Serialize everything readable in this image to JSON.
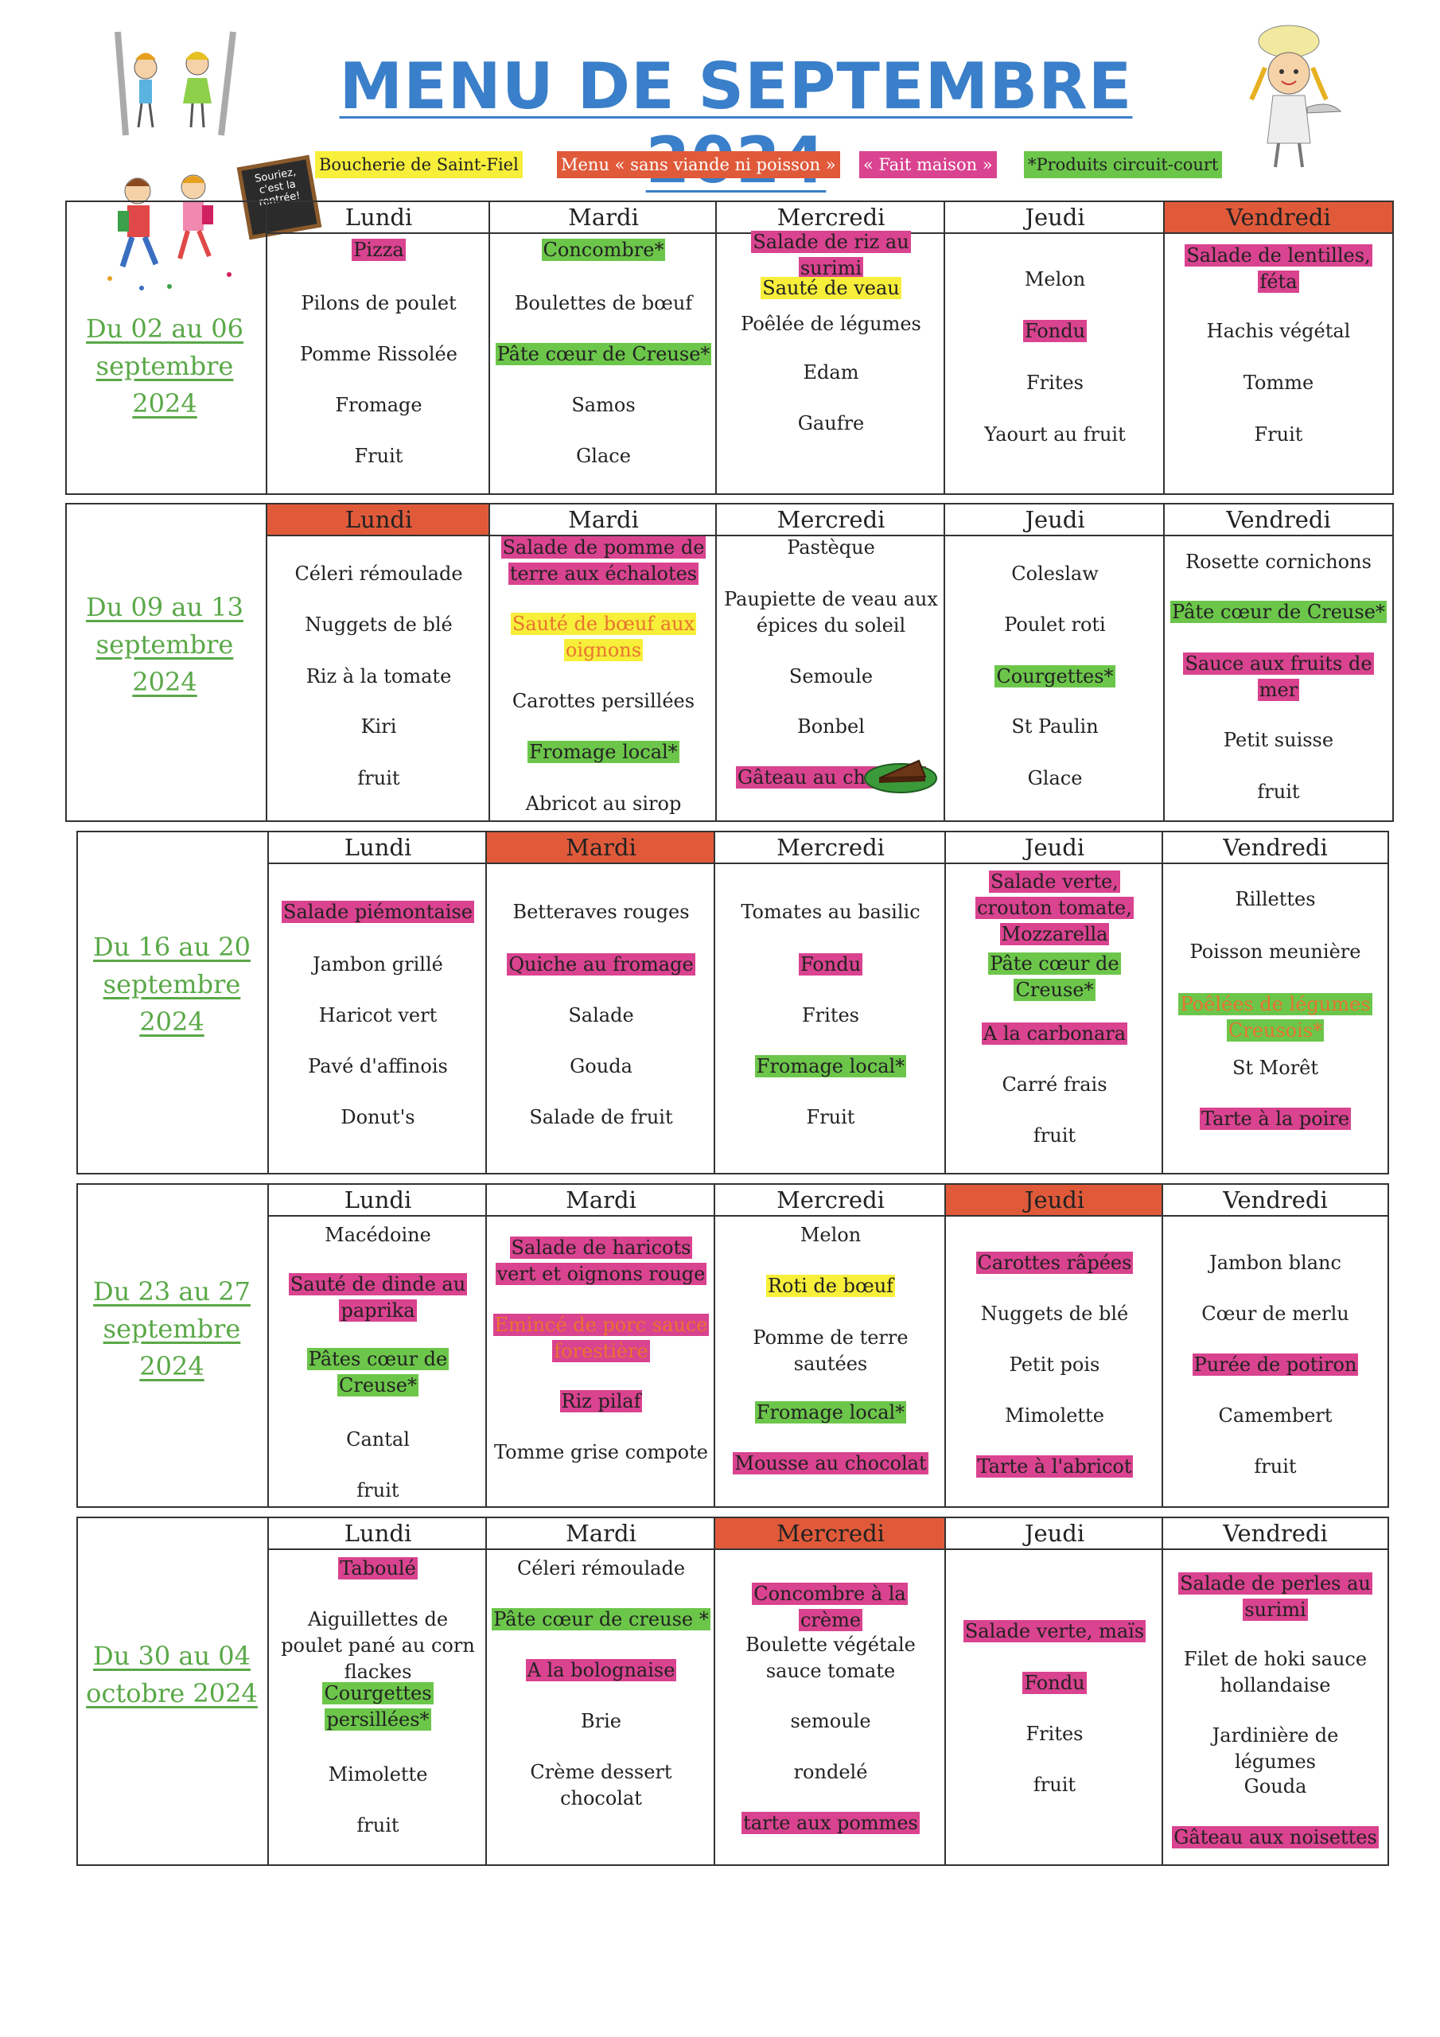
{
  "title": "MENU DE SEPTEMBRE 2024",
  "legend": {
    "boucherie": "Boucherie de Saint-Fiel",
    "sans_viande": "Menu « sans viande ni poisson »",
    "fait_maison": "« Fait maison »",
    "circuit_court": "*Produits circuit-court"
  },
  "sign_text": "Souriez, c'est la rentrée!",
  "colors": {
    "title": "#3a7fc9",
    "week_label": "#5aa848",
    "sans_viande": "#e05a3a",
    "fait_maison": "#d9438f",
    "circuit_court": "#6cc64a",
    "boucherie": "#f7ef3a"
  },
  "weeks": [
    {
      "label": [
        "Du 02 au 06",
        "septembre",
        "2024"
      ],
      "days": [
        {
          "name": "Lundi",
          "items": [
            {
              "t": "Pizza",
              "c": "pink"
            },
            {
              "t": "Pilons de poulet"
            },
            {
              "t": "Pomme Rissolée"
            },
            {
              "t": "Fromage"
            },
            {
              "t": "Fruit"
            }
          ]
        },
        {
          "name": "Mardi",
          "items": [
            {
              "t": "Concombre*",
              "c": "green"
            },
            {
              "t": "Boulettes de bœuf"
            },
            {
              "t": "Pâte cœur de Creuse*",
              "c": "green"
            },
            {
              "t": "Samos"
            },
            {
              "t": "Glace"
            }
          ]
        },
        {
          "name": "Mercredi",
          "items": [
            {
              "t": "Salade de riz au surimi",
              "c": "pink"
            },
            {
              "t": "Sauté de veau",
              "c": "yellow"
            },
            {
              "t": "Poêlée de légumes"
            },
            {
              "t": "Edam"
            },
            {
              "t": "Gaufre"
            }
          ]
        },
        {
          "name": "Jeudi",
          "items": [
            {
              "t": "Melon"
            },
            {
              "t": "Fondu",
              "c": "pink"
            },
            {
              "t": "Frites"
            },
            {
              "t": "Yaourt au fruit"
            }
          ]
        },
        {
          "name": "Vendredi",
          "red": true,
          "items": [
            {
              "t": "Salade de lentilles, féta",
              "c": "pink"
            },
            {
              "t": "Hachis végétal"
            },
            {
              "t": "Tomme"
            },
            {
              "t": "Fruit"
            }
          ]
        }
      ]
    },
    {
      "label": [
        "Du 09 au 13",
        "septembre",
        "2024"
      ],
      "days": [
        {
          "name": "Lundi",
          "red": true,
          "items": [
            {
              "t": "Céleri rémoulade"
            },
            {
              "t": "Nuggets de blé"
            },
            {
              "t": "Riz à la tomate"
            },
            {
              "t": "Kiri"
            },
            {
              "t": "fruit"
            }
          ]
        },
        {
          "name": "Mardi",
          "items": [
            {
              "t": "Salade de pomme de terre aux échalotes",
              "c": "pink"
            },
            {
              "t": "Sauté de bœuf aux oignons",
              "c": "orange-text yellow"
            },
            {
              "t": "Carottes persillées"
            },
            {
              "t": "Fromage local*",
              "c": "green"
            },
            {
              "t": "Abricot au sirop"
            }
          ]
        },
        {
          "name": "Mercredi",
          "items": [
            {
              "t": "Pastèque"
            },
            {
              "t": "Paupiette de veau aux épices du soleil"
            },
            {
              "t": "Semoule"
            },
            {
              "t": "Bonbel"
            },
            {
              "t": "Gâteau au chocolat",
              "c": "pink"
            }
          ]
        },
        {
          "name": "Jeudi",
          "items": [
            {
              "t": "Coleslaw"
            },
            {
              "t": "Poulet roti"
            },
            {
              "t": "Courgettes*",
              "c": "green"
            },
            {
              "t": "St Paulin"
            },
            {
              "t": "Glace"
            }
          ]
        },
        {
          "name": "Vendredi",
          "items": [
            {
              "t": "Rosette cornichons"
            },
            {
              "t": "Pâte cœur de Creuse*",
              "c": "green"
            },
            {
              "t": "Sauce aux fruits de mer",
              "c": "pink"
            },
            {
              "t": "Petit suisse"
            },
            {
              "t": "fruit"
            }
          ]
        }
      ]
    },
    {
      "label": [
        "Du 16  au 20",
        "septembre",
        "2024"
      ],
      "days": [
        {
          "name": "Lundi",
          "items": [
            {
              "t": "Salade piémontaise",
              "c": "pink"
            },
            {
              "t": "Jambon grillé"
            },
            {
              "t": "Haricot vert"
            },
            {
              "t": "Pavé d'affinois"
            },
            {
              "t": "Donut's"
            }
          ]
        },
        {
          "name": "Mardi",
          "red": true,
          "items": [
            {
              "t": "Betteraves rouges"
            },
            {
              "t": "Quiche au fromage",
              "c": "pink"
            },
            {
              "t": "Salade"
            },
            {
              "t": "Gouda"
            },
            {
              "t": "Salade de fruit"
            }
          ]
        },
        {
          "name": "Mercredi",
          "items": [
            {
              "t": "Tomates au basilic"
            },
            {
              "t": "Fondu",
              "c": "pink"
            },
            {
              "t": "Frites"
            },
            {
              "t": "Fromage local*",
              "c": "green"
            },
            {
              "t": "Fruit"
            }
          ]
        },
        {
          "name": "Jeudi",
          "items": [
            {
              "t": "Salade verte, crouton tomate, Mozzarella",
              "c": "pink"
            },
            {
              "t": "Pâte cœur de Creuse*",
              "c": "green"
            },
            {
              "t": "A la carbonara",
              "c": "pink"
            },
            {
              "t": "Carré frais"
            },
            {
              "t": "fruit"
            }
          ]
        },
        {
          "name": "Vendredi",
          "items": [
            {
              "t": "Rillettes"
            },
            {
              "t": "Poisson meunière"
            },
            {
              "t": "Poêlées de légumes Creusois*",
              "c": "orange-text green"
            },
            {
              "t": "St Morêt"
            },
            {
              "t": "Tarte à la poire",
              "c": "pink"
            }
          ]
        }
      ]
    },
    {
      "label": [
        "Du 23 au 27",
        "septembre",
        "2024"
      ],
      "days": [
        {
          "name": "Lundi",
          "items": [
            {
              "t": "Macédoine"
            },
            {
              "t": "Sauté de dinde au paprika",
              "c": "pink"
            },
            {
              "t": "Pâtes cœur de Creuse*",
              "c": "green"
            },
            {
              "t": "Cantal"
            },
            {
              "t": "fruit"
            }
          ]
        },
        {
          "name": "Mardi",
          "items": [
            {
              "t": "Salade de haricots vert et oignons rouge",
              "c": "pink"
            },
            {
              "t": "Emincé de porc sauce forestière",
              "c": "orange-text pink"
            },
            {
              "t": "Riz pilaf",
              "c": "pink"
            },
            {
              "t": "Tomme grise compote"
            }
          ]
        },
        {
          "name": "Mercredi",
          "items": [
            {
              "t": "Melon"
            },
            {
              "t": "Roti de bœuf",
              "c": "yellow"
            },
            {
              "t": "Pomme de terre sautées"
            },
            {
              "t": "Fromage local*",
              "c": "green"
            },
            {
              "t": "Mousse au chocolat",
              "c": "pink"
            }
          ]
        },
        {
          "name": "Jeudi",
          "red": true,
          "items": [
            {
              "t": "Carottes râpées",
              "c": "pink"
            },
            {
              "t": "Nuggets de blé"
            },
            {
              "t": "Petit pois"
            },
            {
              "t": "Mimolette"
            },
            {
              "t": "Tarte à l'abricot",
              "c": "pink"
            }
          ]
        },
        {
          "name": "Vendredi",
          "items": [
            {
              "t": "Jambon blanc"
            },
            {
              "t": "Cœur de merlu"
            },
            {
              "t": "Purée de potiron",
              "c": "pink"
            },
            {
              "t": "Camembert"
            },
            {
              "t": "fruit"
            }
          ]
        }
      ]
    },
    {
      "label": [
        "Du 30 au 04",
        "octobre 2024"
      ],
      "days": [
        {
          "name": "Lundi",
          "items": [
            {
              "t": "Taboulé",
              "c": "pink"
            },
            {
              "t": "Aiguillettes de poulet pané au corn flackes"
            },
            {
              "t": "Courgettes persillées*",
              "c": "green"
            },
            {
              "t": "Mimolette"
            },
            {
              "t": "fruit"
            }
          ]
        },
        {
          "name": "Mardi",
          "items": [
            {
              "t": "Céleri rémoulade"
            },
            {
              "t": "Pâte cœur de creuse *",
              "c": "green"
            },
            {
              "t": "A la bolognaise",
              "c": "pink"
            },
            {
              "t": "Brie"
            },
            {
              "t": "Crème dessert chocolat"
            }
          ]
        },
        {
          "name": "Mercredi",
          "red": true,
          "items": [
            {
              "t": "Concombre à la crème",
              "c": "pink"
            },
            {
              "t": "Boulette végétale sauce tomate"
            },
            {
              "t": "semoule"
            },
            {
              "t": "rondelé"
            },
            {
              "t": "tarte aux pommes",
              "c": "pink"
            }
          ]
        },
        {
          "name": "Jeudi",
          "items": [
            {
              "t": "Salade verte, maïs",
              "c": "pink"
            },
            {
              "t": "Fondu",
              "c": "pink"
            },
            {
              "t": "Frites"
            },
            {
              "t": "fruit"
            }
          ]
        },
        {
          "name": "Vendredi",
          "items": [
            {
              "t": "Salade de perles au surimi",
              "c": "pink"
            },
            {
              "t": "Filet de hoki sauce hollandaise"
            },
            {
              "t": "Jardinière de légumes"
            },
            {
              "t": "Gouda"
            },
            {
              "t": "Gâteau aux noisettes",
              "c": "pink"
            }
          ]
        }
      ]
    }
  ]
}
